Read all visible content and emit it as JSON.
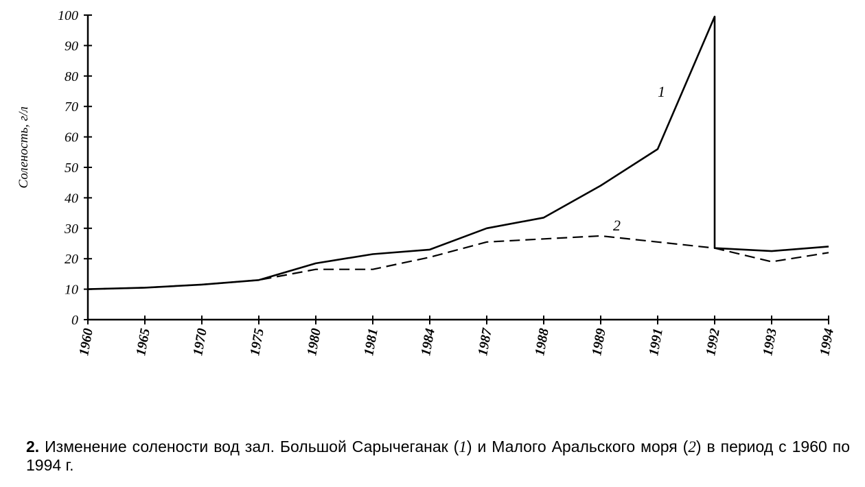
{
  "chart_data": {
    "type": "line",
    "ylabel": "Соленость, г/л",
    "xlabel": "",
    "categories": [
      "1960",
      "1965",
      "1970",
      "1975",
      "1980",
      "1981",
      "1984",
      "1987",
      "1988",
      "1989",
      "1991",
      "1992",
      "1993",
      "1994"
    ],
    "yticks": [
      0,
      10,
      20,
      30,
      40,
      50,
      60,
      70,
      80,
      90,
      100
    ],
    "ylim": [
      0,
      100
    ],
    "grid": false,
    "legend": "none",
    "series": [
      {
        "name": "1",
        "style": "solid",
        "values": [
          10,
          10.5,
          11.5,
          13,
          18.5,
          21.5,
          23,
          30,
          33.5,
          44,
          56,
          99.5,
          22.5,
          24
        ],
        "drop_at_1992_to": 23.5
      },
      {
        "name": "2",
        "style": "dashed",
        "values": [
          10,
          10.5,
          11.5,
          13,
          16.5,
          16.5,
          20.5,
          25.5,
          26.5,
          27.5,
          25.5,
          23.5,
          19,
          22
        ]
      }
    ]
  },
  "caption": {
    "number": "2.",
    "part1": " Изменение солености вод зал. Большой Сарычеганак (",
    "ref1": "1",
    "part2": ") и Малого Аральского моря (",
    "ref2": "2",
    "part3": ") в период с 1960 по 1994 г."
  },
  "colors": {
    "ink": "#000000",
    "paper": "#ffffff"
  }
}
